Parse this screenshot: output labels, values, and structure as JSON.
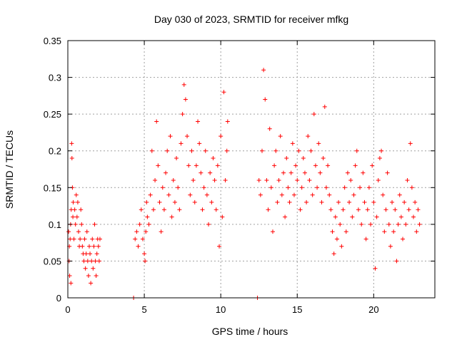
{
  "chart_data": {
    "type": "scatter",
    "title": "Day 030 of 2023, SRMTID for receiver mfkg",
    "xlabel": "GPS time / hours",
    "ylabel": "SRMTID / TECUs",
    "xlim": [
      0,
      24
    ],
    "ylim": [
      0,
      0.35
    ],
    "xticks": [
      0,
      5,
      10,
      15,
      20
    ],
    "xtick_labels": [
      "0",
      "5",
      "10",
      "15",
      "20"
    ],
    "yticks": [
      0,
      0.05,
      0.1,
      0.15,
      0.2,
      0.25,
      0.3,
      0.35
    ],
    "ytick_labels": [
      "0",
      "0.05",
      "0.1",
      "0.15",
      "0.2",
      "0.25",
      "0.3",
      "0.35"
    ],
    "grid": true,
    "marker": "+",
    "color": "#ff0000",
    "series": [
      {
        "name": "SRMTID",
        "points": [
          [
            0.05,
            0.09
          ],
          [
            0.08,
            0.05
          ],
          [
            0.1,
            0.07
          ],
          [
            0.12,
            0.03
          ],
          [
            0.15,
            0.08
          ],
          [
            0.18,
            0.1
          ],
          [
            0.2,
            0.02
          ],
          [
            0.22,
            0.12
          ],
          [
            0.25,
            0.21
          ],
          [
            0.27,
            0.19
          ],
          [
            0.3,
            0.15
          ],
          [
            0.33,
            0.11
          ],
          [
            0.35,
            0.13
          ],
          [
            0.4,
            0.08
          ],
          [
            0.45,
            0.12
          ],
          [
            0.5,
            0.1
          ],
          [
            0.55,
            0.14
          ],
          [
            0.6,
            0.11
          ],
          [
            0.65,
            0.13
          ],
          [
            0.7,
            0.09
          ],
          [
            0.75,
            0.07
          ],
          [
            0.8,
            0.08
          ],
          [
            0.85,
            0.12
          ],
          [
            0.9,
            0.1
          ],
          [
            0.95,
            0.07
          ],
          [
            1.0,
            0.06
          ],
          [
            1.05,
            0.05
          ],
          [
            1.1,
            0.08
          ],
          [
            1.15,
            0.04
          ],
          [
            1.2,
            0.06
          ],
          [
            1.25,
            0.09
          ],
          [
            1.3,
            0.05
          ],
          [
            1.35,
            0.03
          ],
          [
            1.4,
            0.07
          ],
          [
            1.45,
            0.06
          ],
          [
            1.5,
            0.02
          ],
          [
            1.55,
            0.05
          ],
          [
            1.6,
            0.08
          ],
          [
            1.65,
            0.04
          ],
          [
            1.7,
            0.07
          ],
          [
            1.75,
            0.1
          ],
          [
            1.8,
            0.05
          ],
          [
            1.85,
            0.03
          ],
          [
            1.9,
            0.06
          ],
          [
            1.95,
            0.08
          ],
          [
            2.0,
            0.07
          ],
          [
            2.05,
            0.05
          ],
          [
            2.1,
            0.08
          ],
          [
            4.3,
            0.0
          ],
          [
            12.4,
            0.0
          ],
          [
            4.4,
            0.08
          ],
          [
            4.5,
            0.09
          ],
          [
            4.6,
            0.07
          ],
          [
            4.7,
            0.1
          ],
          [
            4.8,
            0.12
          ],
          [
            4.9,
            0.08
          ],
          [
            5.0,
            0.06
          ],
          [
            5.05,
            0.05
          ],
          [
            5.1,
            0.09
          ],
          [
            5.15,
            0.13
          ],
          [
            5.2,
            0.11
          ],
          [
            5.3,
            0.1
          ],
          [
            5.4,
            0.14
          ],
          [
            5.5,
            0.2
          ],
          [
            5.6,
            0.12
          ],
          [
            5.7,
            0.16
          ],
          [
            5.8,
            0.24
          ],
          [
            5.9,
            0.18
          ],
          [
            6.0,
            0.13
          ],
          [
            6.1,
            0.09
          ],
          [
            6.2,
            0.15
          ],
          [
            6.3,
            0.12
          ],
          [
            6.4,
            0.17
          ],
          [
            6.5,
            0.2
          ],
          [
            6.6,
            0.14
          ],
          [
            6.7,
            0.22
          ],
          [
            6.8,
            0.11
          ],
          [
            6.9,
            0.16
          ],
          [
            7.0,
            0.13
          ],
          [
            7.1,
            0.19
          ],
          [
            7.2,
            0.15
          ],
          [
            7.3,
            0.12
          ],
          [
            7.4,
            0.21
          ],
          [
            7.5,
            0.25
          ],
          [
            7.6,
            0.29
          ],
          [
            7.7,
            0.27
          ],
          [
            7.8,
            0.22
          ],
          [
            7.9,
            0.18
          ],
          [
            8.0,
            0.14
          ],
          [
            8.1,
            0.2
          ],
          [
            8.2,
            0.16
          ],
          [
            8.3,
            0.13
          ],
          [
            8.4,
            0.18
          ],
          [
            8.5,
            0.24
          ],
          [
            8.6,
            0.21
          ],
          [
            8.7,
            0.17
          ],
          [
            8.8,
            0.12
          ],
          [
            8.9,
            0.15
          ],
          [
            9.0,
            0.2
          ],
          [
            9.1,
            0.14
          ],
          [
            9.2,
            0.1
          ],
          [
            9.3,
            0.17
          ],
          [
            9.4,
            0.13
          ],
          [
            9.5,
            0.19
          ],
          [
            9.6,
            0.16
          ],
          [
            9.7,
            0.12
          ],
          [
            9.8,
            0.18
          ],
          [
            9.9,
            0.07
          ],
          [
            10.0,
            0.22
          ],
          [
            10.1,
            0.11
          ],
          [
            10.2,
            0.28
          ],
          [
            10.3,
            0.16
          ],
          [
            10.4,
            0.2
          ],
          [
            10.45,
            0.24
          ],
          [
            12.5,
            0.16
          ],
          [
            12.6,
            0.14
          ],
          [
            12.7,
            0.2
          ],
          [
            12.8,
            0.31
          ],
          [
            12.9,
            0.27
          ],
          [
            13.0,
            0.16
          ],
          [
            13.1,
            0.12
          ],
          [
            13.2,
            0.23
          ],
          [
            13.3,
            0.15
          ],
          [
            13.4,
            0.09
          ],
          [
            13.5,
            0.18
          ],
          [
            13.6,
            0.2
          ],
          [
            13.7,
            0.13
          ],
          [
            13.8,
            0.16
          ],
          [
            13.9,
            0.22
          ],
          [
            14.0,
            0.14
          ],
          [
            14.1,
            0.17
          ],
          [
            14.2,
            0.11
          ],
          [
            14.3,
            0.19
          ],
          [
            14.4,
            0.15
          ],
          [
            14.5,
            0.13
          ],
          [
            14.6,
            0.17
          ],
          [
            14.7,
            0.21
          ],
          [
            14.8,
            0.14
          ],
          [
            14.9,
            0.18
          ],
          [
            15.0,
            0.16
          ],
          [
            15.1,
            0.2
          ],
          [
            15.2,
            0.12
          ],
          [
            15.3,
            0.15
          ],
          [
            15.4,
            0.19
          ],
          [
            15.5,
            0.17
          ],
          [
            15.6,
            0.13
          ],
          [
            15.7,
            0.22
          ],
          [
            15.8,
            0.16
          ],
          [
            15.9,
            0.2
          ],
          [
            16.0,
            0.14
          ],
          [
            16.1,
            0.25
          ],
          [
            16.2,
            0.18
          ],
          [
            16.3,
            0.15
          ],
          [
            16.4,
            0.21
          ],
          [
            16.5,
            0.17
          ],
          [
            16.6,
            0.13
          ],
          [
            16.7,
            0.19
          ],
          [
            16.8,
            0.26
          ],
          [
            16.9,
            0.15
          ],
          [
            17.0,
            0.18
          ],
          [
            17.1,
            0.14
          ],
          [
            17.2,
            0.12
          ],
          [
            17.3,
            0.09
          ],
          [
            17.4,
            0.06
          ],
          [
            17.5,
            0.11
          ],
          [
            17.6,
            0.08
          ],
          [
            17.7,
            0.13
          ],
          [
            17.8,
            0.1
          ],
          [
            17.9,
            0.07
          ],
          [
            18.0,
            0.12
          ],
          [
            18.1,
            0.15
          ],
          [
            18.2,
            0.09
          ],
          [
            18.3,
            0.17
          ],
          [
            18.4,
            0.13
          ],
          [
            18.5,
            0.16
          ],
          [
            18.6,
            0.11
          ],
          [
            18.7,
            0.14
          ],
          [
            18.8,
            0.18
          ],
          [
            18.9,
            0.2
          ],
          [
            19.0,
            0.12
          ],
          [
            19.1,
            0.15
          ],
          [
            19.2,
            0.1
          ],
          [
            19.3,
            0.17
          ],
          [
            19.4,
            0.13
          ],
          [
            19.5,
            0.08
          ],
          [
            19.6,
            0.12
          ],
          [
            19.7,
            0.15
          ],
          [
            19.8,
            0.1
          ],
          [
            19.9,
            0.18
          ],
          [
            20.0,
            0.13
          ],
          [
            20.1,
            0.04
          ],
          [
            20.2,
            0.11
          ],
          [
            20.3,
            0.16
          ],
          [
            20.4,
            0.19
          ],
          [
            20.5,
            0.2
          ],
          [
            20.6,
            0.14
          ],
          [
            20.7,
            0.09
          ],
          [
            20.8,
            0.12
          ],
          [
            20.9,
            0.17
          ],
          [
            21.0,
            0.1
          ],
          [
            21.1,
            0.07
          ],
          [
            21.2,
            0.13
          ],
          [
            21.3,
            0.09
          ],
          [
            21.4,
            0.12
          ],
          [
            21.5,
            0.05
          ],
          [
            21.6,
            0.1
          ],
          [
            21.7,
            0.14
          ],
          [
            21.8,
            0.11
          ],
          [
            21.9,
            0.08
          ],
          [
            22.0,
            0.13
          ],
          [
            22.1,
            0.1
          ],
          [
            22.2,
            0.16
          ],
          [
            22.3,
            0.12
          ],
          [
            22.4,
            0.21
          ],
          [
            22.5,
            0.15
          ],
          [
            22.6,
            0.11
          ],
          [
            22.7,
            0.13
          ],
          [
            22.8,
            0.09
          ],
          [
            22.9,
            0.12
          ],
          [
            23.0,
            0.1
          ]
        ]
      }
    ]
  }
}
